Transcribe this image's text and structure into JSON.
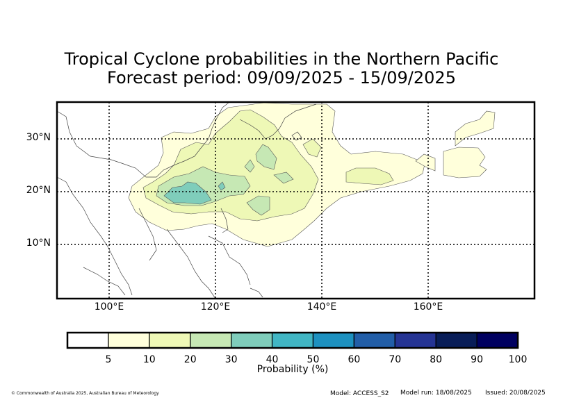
{
  "title_line1": "Tropical Cyclone probabilities in the Northern Pacific",
  "title_line2": "Forecast period: 09/09/2025 - 15/09/2025",
  "lat_labels": [
    "30°N",
    "20°N",
    "10°N"
  ],
  "lon_labels": [
    "100°E",
    "120°E",
    "140°E",
    "160°E"
  ],
  "colorbar": {
    "label": "Probability (%)",
    "ticks": [
      "5",
      "10",
      "20",
      "30",
      "40",
      "50",
      "60",
      "70",
      "80",
      "90",
      "100"
    ],
    "colors": [
      "#ffffff",
      "#ffffdb",
      "#eef8b6",
      "#c6e8b4",
      "#7fcdbb",
      "#41b6c4",
      "#1d91c0",
      "#225ea8",
      "#253494",
      "#081d58",
      "#000060"
    ]
  },
  "footer": {
    "copyright": "© Commonwealth of Australia 2025, Australian Bureau of Meteorology",
    "model": "Model: ACCESS_S2",
    "model_run": "Model run: 18/08/2025",
    "issued": "Issued: 20/08/2025"
  }
}
